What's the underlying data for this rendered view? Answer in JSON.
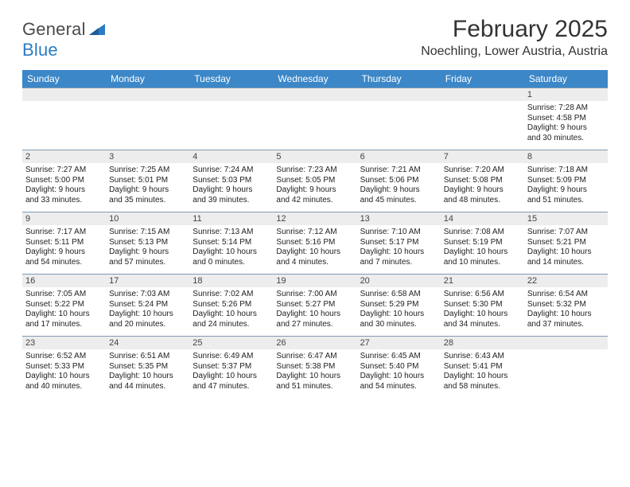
{
  "logo": {
    "word1": "General",
    "word2": "Blue"
  },
  "title": "February 2025",
  "location": "Noechling, Lower Austria, Austria",
  "header_bg": "#3b87c8",
  "weekdays": [
    "Sunday",
    "Monday",
    "Tuesday",
    "Wednesday",
    "Thursday",
    "Friday",
    "Saturday"
  ],
  "cell_border_color": "#7f9bb3",
  "daynum_bg": "#ededed",
  "body_font_size": 10,
  "rows": [
    [
      {
        "day": "",
        "sunrise": "",
        "sunset": "",
        "daylight1": "",
        "daylight2": ""
      },
      {
        "day": "",
        "sunrise": "",
        "sunset": "",
        "daylight1": "",
        "daylight2": ""
      },
      {
        "day": "",
        "sunrise": "",
        "sunset": "",
        "daylight1": "",
        "daylight2": ""
      },
      {
        "day": "",
        "sunrise": "",
        "sunset": "",
        "daylight1": "",
        "daylight2": ""
      },
      {
        "day": "",
        "sunrise": "",
        "sunset": "",
        "daylight1": "",
        "daylight2": ""
      },
      {
        "day": "",
        "sunrise": "",
        "sunset": "",
        "daylight1": "",
        "daylight2": ""
      },
      {
        "day": "1",
        "sunrise": "Sunrise: 7:28 AM",
        "sunset": "Sunset: 4:58 PM",
        "daylight1": "Daylight: 9 hours",
        "daylight2": "and 30 minutes."
      }
    ],
    [
      {
        "day": "2",
        "sunrise": "Sunrise: 7:27 AM",
        "sunset": "Sunset: 5:00 PM",
        "daylight1": "Daylight: 9 hours",
        "daylight2": "and 33 minutes."
      },
      {
        "day": "3",
        "sunrise": "Sunrise: 7:25 AM",
        "sunset": "Sunset: 5:01 PM",
        "daylight1": "Daylight: 9 hours",
        "daylight2": "and 35 minutes."
      },
      {
        "day": "4",
        "sunrise": "Sunrise: 7:24 AM",
        "sunset": "Sunset: 5:03 PM",
        "daylight1": "Daylight: 9 hours",
        "daylight2": "and 39 minutes."
      },
      {
        "day": "5",
        "sunrise": "Sunrise: 7:23 AM",
        "sunset": "Sunset: 5:05 PM",
        "daylight1": "Daylight: 9 hours",
        "daylight2": "and 42 minutes."
      },
      {
        "day": "6",
        "sunrise": "Sunrise: 7:21 AM",
        "sunset": "Sunset: 5:06 PM",
        "daylight1": "Daylight: 9 hours",
        "daylight2": "and 45 minutes."
      },
      {
        "day": "7",
        "sunrise": "Sunrise: 7:20 AM",
        "sunset": "Sunset: 5:08 PM",
        "daylight1": "Daylight: 9 hours",
        "daylight2": "and 48 minutes."
      },
      {
        "day": "8",
        "sunrise": "Sunrise: 7:18 AM",
        "sunset": "Sunset: 5:09 PM",
        "daylight1": "Daylight: 9 hours",
        "daylight2": "and 51 minutes."
      }
    ],
    [
      {
        "day": "9",
        "sunrise": "Sunrise: 7:17 AM",
        "sunset": "Sunset: 5:11 PM",
        "daylight1": "Daylight: 9 hours",
        "daylight2": "and 54 minutes."
      },
      {
        "day": "10",
        "sunrise": "Sunrise: 7:15 AM",
        "sunset": "Sunset: 5:13 PM",
        "daylight1": "Daylight: 9 hours",
        "daylight2": "and 57 minutes."
      },
      {
        "day": "11",
        "sunrise": "Sunrise: 7:13 AM",
        "sunset": "Sunset: 5:14 PM",
        "daylight1": "Daylight: 10 hours",
        "daylight2": "and 0 minutes."
      },
      {
        "day": "12",
        "sunrise": "Sunrise: 7:12 AM",
        "sunset": "Sunset: 5:16 PM",
        "daylight1": "Daylight: 10 hours",
        "daylight2": "and 4 minutes."
      },
      {
        "day": "13",
        "sunrise": "Sunrise: 7:10 AM",
        "sunset": "Sunset: 5:17 PM",
        "daylight1": "Daylight: 10 hours",
        "daylight2": "and 7 minutes."
      },
      {
        "day": "14",
        "sunrise": "Sunrise: 7:08 AM",
        "sunset": "Sunset: 5:19 PM",
        "daylight1": "Daylight: 10 hours",
        "daylight2": "and 10 minutes."
      },
      {
        "day": "15",
        "sunrise": "Sunrise: 7:07 AM",
        "sunset": "Sunset: 5:21 PM",
        "daylight1": "Daylight: 10 hours",
        "daylight2": "and 14 minutes."
      }
    ],
    [
      {
        "day": "16",
        "sunrise": "Sunrise: 7:05 AM",
        "sunset": "Sunset: 5:22 PM",
        "daylight1": "Daylight: 10 hours",
        "daylight2": "and 17 minutes."
      },
      {
        "day": "17",
        "sunrise": "Sunrise: 7:03 AM",
        "sunset": "Sunset: 5:24 PM",
        "daylight1": "Daylight: 10 hours",
        "daylight2": "and 20 minutes."
      },
      {
        "day": "18",
        "sunrise": "Sunrise: 7:02 AM",
        "sunset": "Sunset: 5:26 PM",
        "daylight1": "Daylight: 10 hours",
        "daylight2": "and 24 minutes."
      },
      {
        "day": "19",
        "sunrise": "Sunrise: 7:00 AM",
        "sunset": "Sunset: 5:27 PM",
        "daylight1": "Daylight: 10 hours",
        "daylight2": "and 27 minutes."
      },
      {
        "day": "20",
        "sunrise": "Sunrise: 6:58 AM",
        "sunset": "Sunset: 5:29 PM",
        "daylight1": "Daylight: 10 hours",
        "daylight2": "and 30 minutes."
      },
      {
        "day": "21",
        "sunrise": "Sunrise: 6:56 AM",
        "sunset": "Sunset: 5:30 PM",
        "daylight1": "Daylight: 10 hours",
        "daylight2": "and 34 minutes."
      },
      {
        "day": "22",
        "sunrise": "Sunrise: 6:54 AM",
        "sunset": "Sunset: 5:32 PM",
        "daylight1": "Daylight: 10 hours",
        "daylight2": "and 37 minutes."
      }
    ],
    [
      {
        "day": "23",
        "sunrise": "Sunrise: 6:52 AM",
        "sunset": "Sunset: 5:33 PM",
        "daylight1": "Daylight: 10 hours",
        "daylight2": "and 40 minutes."
      },
      {
        "day": "24",
        "sunrise": "Sunrise: 6:51 AM",
        "sunset": "Sunset: 5:35 PM",
        "daylight1": "Daylight: 10 hours",
        "daylight2": "and 44 minutes."
      },
      {
        "day": "25",
        "sunrise": "Sunrise: 6:49 AM",
        "sunset": "Sunset: 5:37 PM",
        "daylight1": "Daylight: 10 hours",
        "daylight2": "and 47 minutes."
      },
      {
        "day": "26",
        "sunrise": "Sunrise: 6:47 AM",
        "sunset": "Sunset: 5:38 PM",
        "daylight1": "Daylight: 10 hours",
        "daylight2": "and 51 minutes."
      },
      {
        "day": "27",
        "sunrise": "Sunrise: 6:45 AM",
        "sunset": "Sunset: 5:40 PM",
        "daylight1": "Daylight: 10 hours",
        "daylight2": "and 54 minutes."
      },
      {
        "day": "28",
        "sunrise": "Sunrise: 6:43 AM",
        "sunset": "Sunset: 5:41 PM",
        "daylight1": "Daylight: 10 hours",
        "daylight2": "and 58 minutes."
      },
      {
        "day": "",
        "sunrise": "",
        "sunset": "",
        "daylight1": "",
        "daylight2": ""
      }
    ]
  ]
}
